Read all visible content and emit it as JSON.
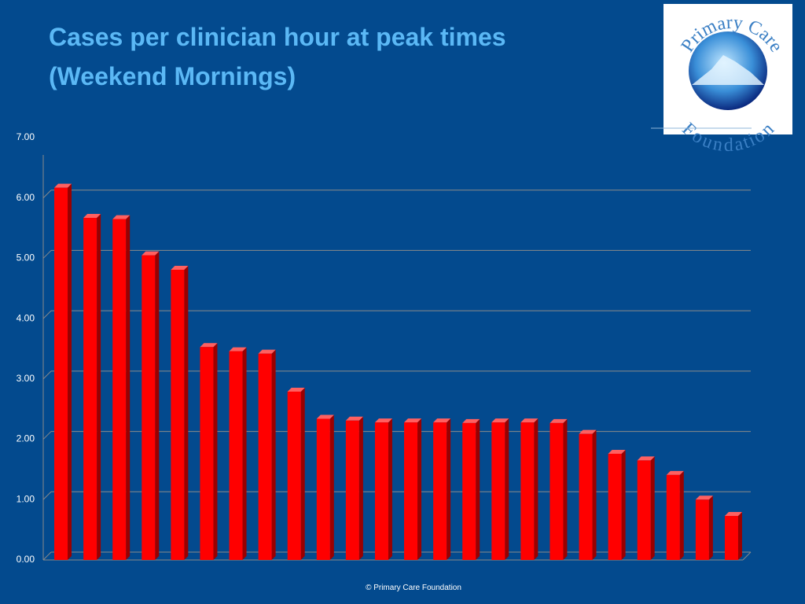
{
  "chart_data": {
    "type": "bar",
    "title_lines": [
      "Cases per clinician hour at peak times",
      "(Weekend Mornings)"
    ],
    "values": [
      6.17,
      5.67,
      5.65,
      5.05,
      4.81,
      3.53,
      3.46,
      3.42,
      2.79,
      2.34,
      2.31,
      2.28,
      2.28,
      2.28,
      2.27,
      2.28,
      2.28,
      2.27,
      2.09,
      1.76,
      1.65,
      1.41,
      1.0,
      0.73
    ],
    "color": "#ff0000",
    "ylim": [
      0,
      7
    ],
    "yticks": [
      {
        "value": 0,
        "label": "0.00"
      },
      {
        "value": 1,
        "label": "1.00"
      },
      {
        "value": 2,
        "label": "2.00"
      },
      {
        "value": 3,
        "label": "3.00"
      },
      {
        "value": 4,
        "label": "4.00"
      },
      {
        "value": 5,
        "label": "5.00"
      },
      {
        "value": 6,
        "label": "6.00"
      },
      {
        "value": 7,
        "label": "7.00"
      }
    ],
    "grid": true
  },
  "logo": {
    "top": "Primary Care",
    "bottom": "Foundation"
  },
  "footer": "© Primary Care Foundation"
}
